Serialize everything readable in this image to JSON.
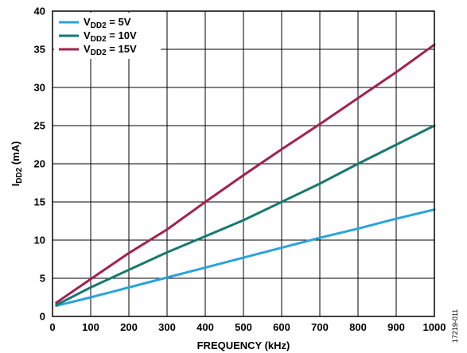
{
  "chart_data": {
    "type": "line",
    "xlabel": "FREQUENCY (kHz)",
    "ylabel": {
      "main": "I",
      "sub": "DD2",
      "unit": " (mA)"
    },
    "xlim": [
      0,
      1000
    ],
    "ylim": [
      0,
      40
    ],
    "xticks": [
      0,
      100,
      200,
      300,
      400,
      500,
      600,
      700,
      800,
      900,
      1000
    ],
    "yticks": [
      0,
      5,
      10,
      15,
      20,
      25,
      30,
      35,
      40
    ],
    "grid": true,
    "legend_position": "top-left",
    "series": [
      {
        "legend": {
          "prefix": "V",
          "sub": "DD2",
          "suffix": " = 5V"
        },
        "color": "#2aa3db",
        "x": [
          10,
          100,
          200,
          300,
          400,
          500,
          600,
          700,
          800,
          900,
          1000
        ],
        "y": [
          1.4,
          2.5,
          3.8,
          5.1,
          6.4,
          7.7,
          9.0,
          10.3,
          11.5,
          12.8,
          14.0
        ]
      },
      {
        "legend": {
          "prefix": "V",
          "sub": "DD2",
          "suffix": " = 10V"
        },
        "color": "#16796f",
        "x": [
          10,
          100,
          200,
          300,
          400,
          500,
          600,
          700,
          800,
          900,
          1000
        ],
        "y": [
          1.5,
          3.8,
          6.1,
          8.4,
          10.5,
          12.6,
          15.0,
          17.4,
          20.0,
          22.5,
          25.0
        ]
      },
      {
        "legend": {
          "prefix": "V",
          "sub": "DD2",
          "suffix": " = 15V"
        },
        "color": "#a3214f",
        "x": [
          10,
          100,
          200,
          300,
          400,
          500,
          600,
          700,
          800,
          900,
          1000
        ],
        "y": [
          1.8,
          4.9,
          8.3,
          11.4,
          15.0,
          18.5,
          21.9,
          25.2,
          28.6,
          32.0,
          35.6
        ]
      }
    ]
  },
  "figure_id": "17219-011"
}
